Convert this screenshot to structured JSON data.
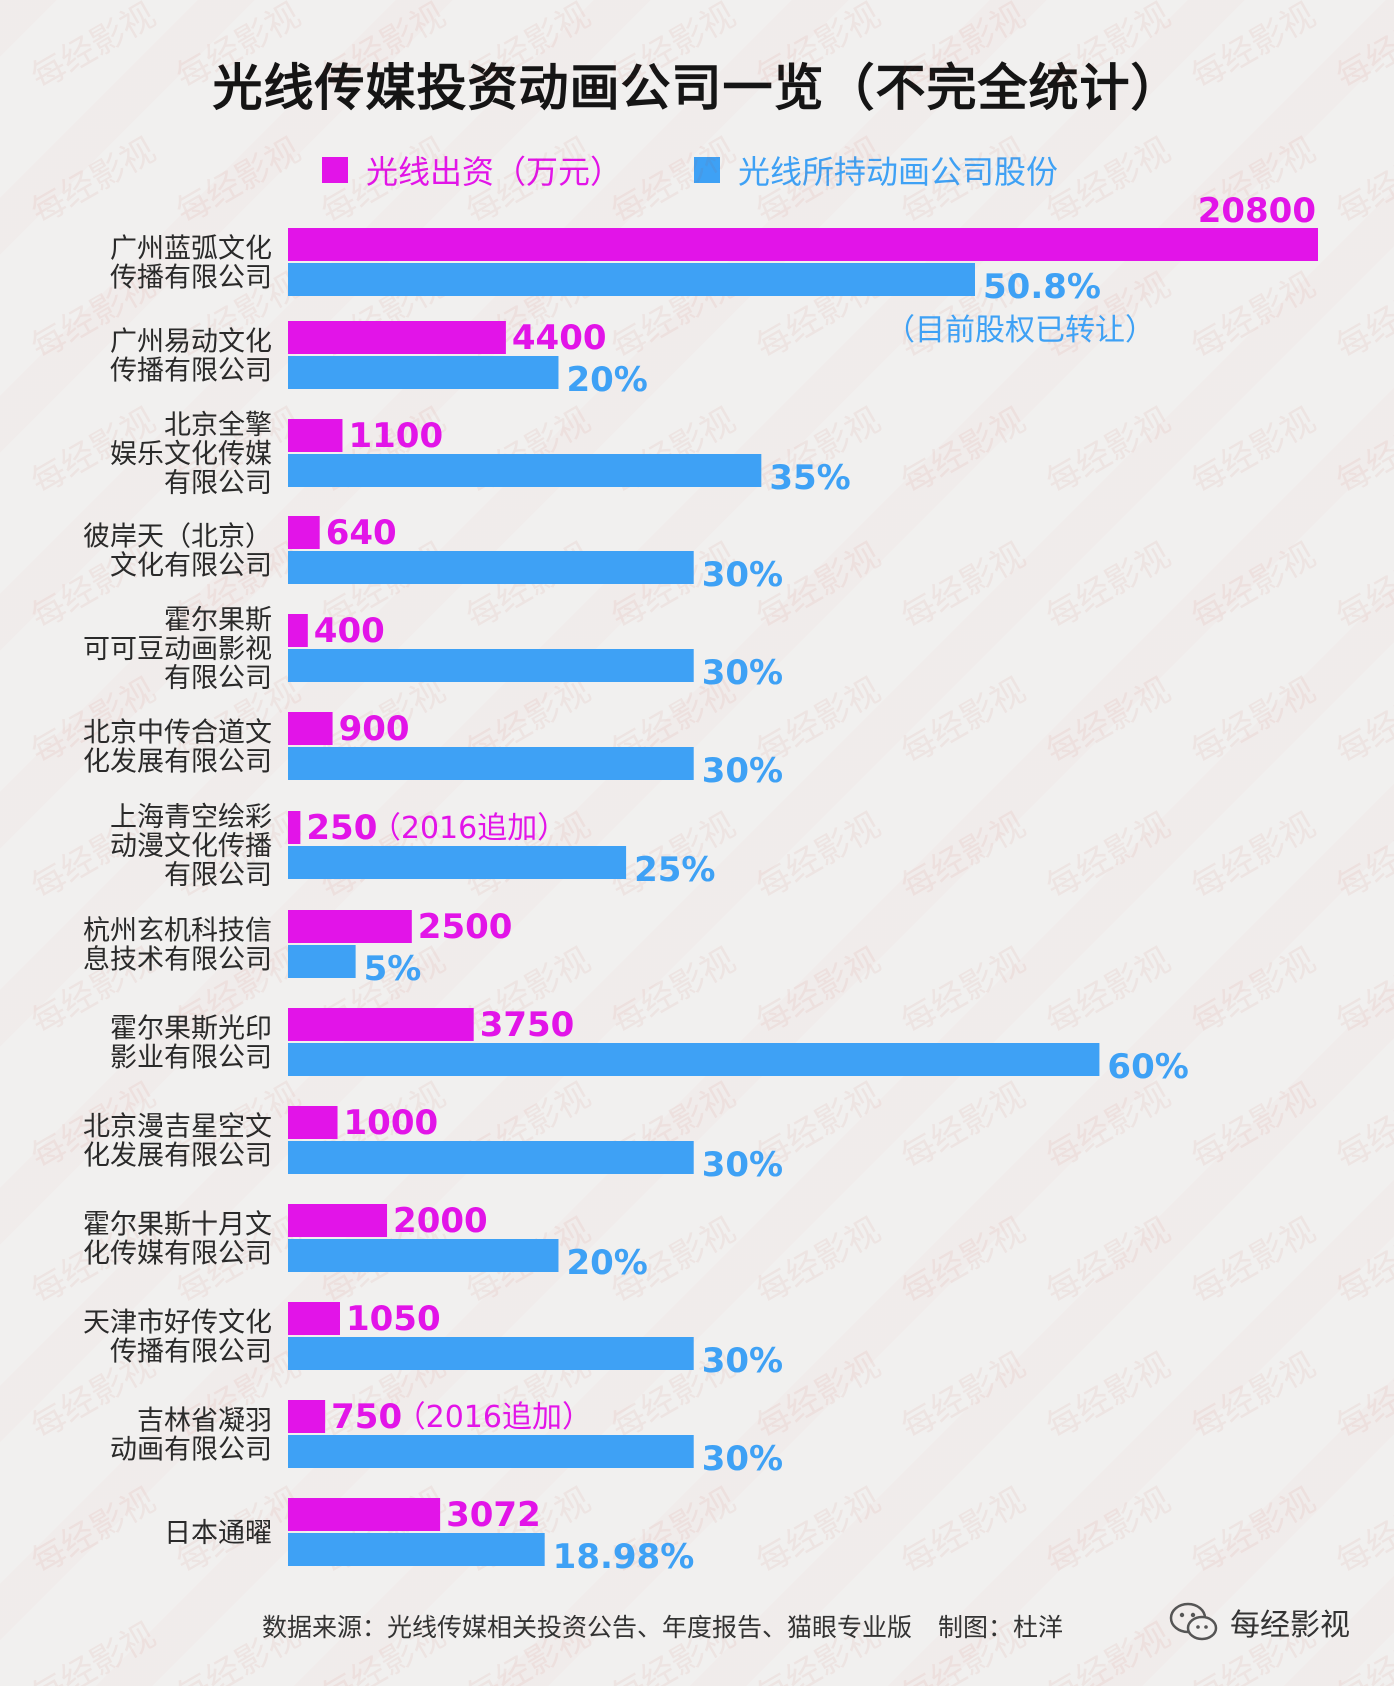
{
  "chart_data": {
    "type": "bar",
    "title": "光线传媒投资动画公司一览（不完全统计）",
    "legend_placement": "top",
    "categories": [
      [
        "广州蓝弧文化",
        "传播有限公司"
      ],
      [
        "广州易动文化",
        "传播有限公司"
      ],
      [
        "北京全擎",
        "娱乐文化传媒",
        "有限公司"
      ],
      [
        "彼岸天（北京）",
        "文化有限公司"
      ],
      [
        "霍尔果斯",
        "可可豆动画影视",
        "有限公司"
      ],
      [
        "北京中传合道文",
        "化发展有限公司"
      ],
      [
        "上海青空绘彩",
        "动漫文化传播",
        "有限公司"
      ],
      [
        "杭州玄机科技信",
        "息技术有限公司"
      ],
      [
        "霍尔果斯光印",
        "影业有限公司"
      ],
      [
        "北京漫吉星空文",
        "化发展有限公司"
      ],
      [
        "霍尔果斯十月文",
        "化传媒有限公司"
      ],
      [
        "天津市好传文化",
        "传播有限公司"
      ],
      [
        "吉林省凝羽",
        "动画有限公司"
      ],
      [
        "日本通曜"
      ]
    ],
    "series": [
      {
        "name": "光线出资（万元）",
        "color": "#e214e8",
        "values": [
          20800,
          4400,
          1100,
          640,
          400,
          900,
          250,
          2500,
          3750,
          1000,
          2000,
          1050,
          750,
          3072
        ],
        "labels": [
          "20800",
          "4400",
          "1100",
          "640",
          "400",
          "900",
          "250",
          "2500",
          "3750",
          "1000",
          "2000",
          "1050",
          "750",
          "3072"
        ]
      },
      {
        "name": "光线所持动画公司股份",
        "color": "#3ea1f5",
        "values": [
          50.8,
          20,
          35,
          30,
          30,
          30,
          25,
          5,
          60,
          30,
          20,
          30,
          30,
          18.98
        ],
        "labels": [
          "50.8%",
          "20%",
          "35%",
          "30%",
          "30%",
          "30%",
          "25%",
          "5%",
          "60%",
          "30%",
          "20%",
          "30%",
          "30%",
          "18.98%"
        ]
      }
    ],
    "annotations": [
      {
        "category_index": 0,
        "series": 1,
        "text": "（目前股权已转让）"
      },
      {
        "category_index": 6,
        "series": 0,
        "text": "（2016追加）"
      },
      {
        "category_index": 12,
        "series": 0,
        "text": "（2016追加）"
      }
    ],
    "grid": false
  },
  "footer": {
    "source": "数据来源：光线传媒相关投资公告、年度报告、猫眼专业版",
    "credit": "制图：杜洋"
  },
  "brand": {
    "name": "每经影视",
    "icon": "wechat-icon"
  },
  "watermark": "每经影视"
}
